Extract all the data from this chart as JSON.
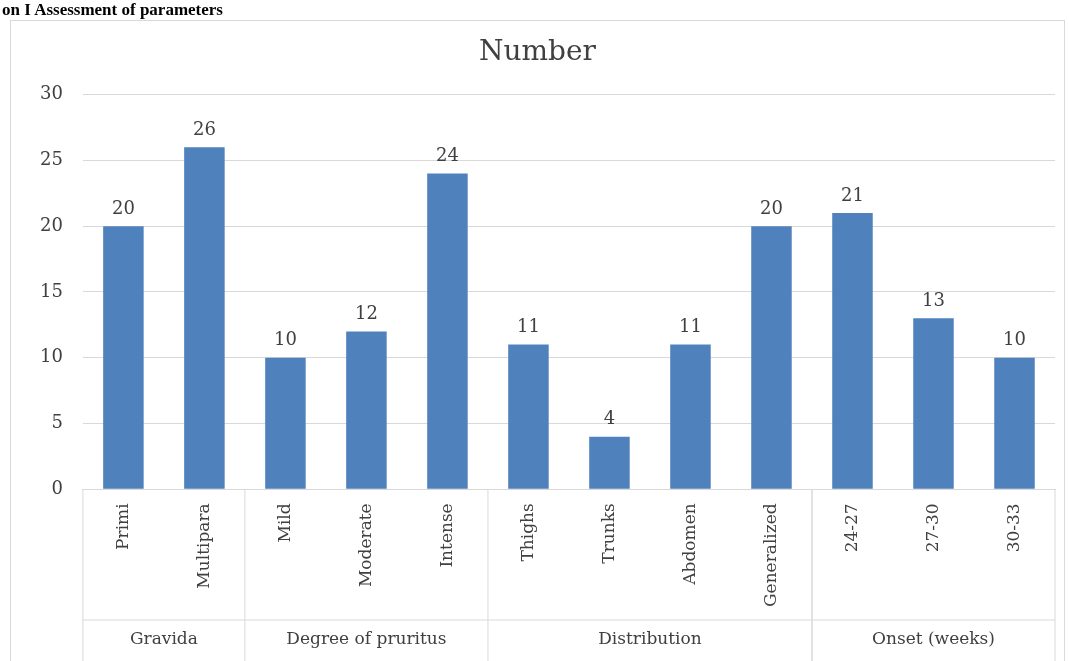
{
  "chart_data": {
    "type": "bar",
    "title": "Number",
    "categories": [
      "Primi",
      "Multipara",
      "Mild",
      "Moderate",
      "Intense",
      "Thighs",
      "Trunks",
      "Abdomen",
      "Generalized",
      "24-27",
      "27-30",
      "30-33"
    ],
    "values": [
      20,
      26,
      10,
      12,
      24,
      11,
      4,
      11,
      20,
      21,
      13,
      10
    ],
    "color": "#4f81bd",
    "ylim": [
      0,
      30
    ],
    "yticks": [
      0,
      5,
      10,
      15,
      20,
      25,
      30
    ],
    "grid": "y",
    "data_labels": true,
    "annotations": [
      "on I Assessment of parameters",
      "Gravida",
      "Degree of pruritus",
      "Distribution",
      "Onset (weeks)"
    ]
  }
}
